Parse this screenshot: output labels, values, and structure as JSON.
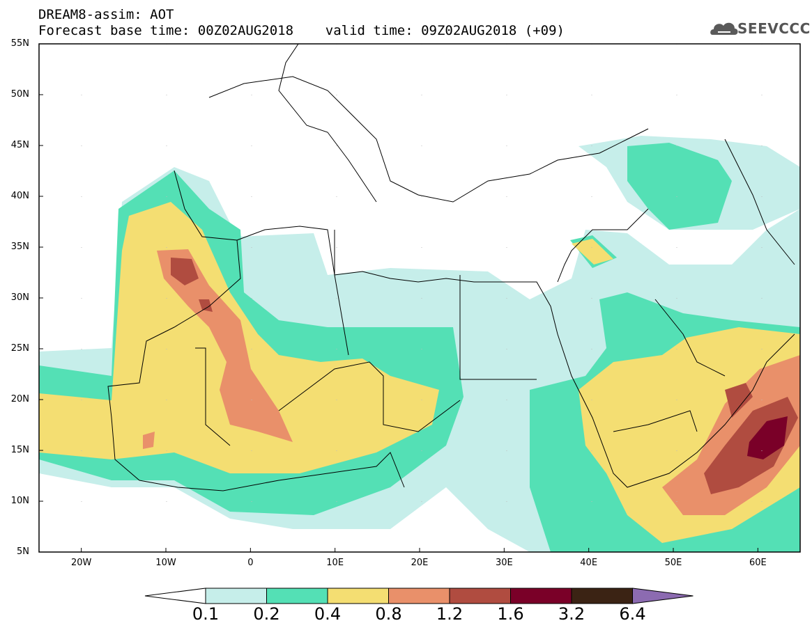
{
  "header": {
    "line1": "DREAM8-assim: AOT",
    "line2": "Forecast base time: 00Z02AUG2018    valid time: 09Z02AUG2018 (+09)"
  },
  "logo": {
    "text": "SEEVCCC",
    "icon": "cloud-icon"
  },
  "map": {
    "lon_range": [
      -25,
      65
    ],
    "lat_range": [
      5,
      55
    ],
    "lat_labels": [
      {
        "lat": 55,
        "text": "55N"
      },
      {
        "lat": 50,
        "text": "50N"
      },
      {
        "lat": 45,
        "text": "45N"
      },
      {
        "lat": 40,
        "text": "40N"
      },
      {
        "lat": 35,
        "text": "35N"
      },
      {
        "lat": 30,
        "text": "30N"
      },
      {
        "lat": 25,
        "text": "25N"
      },
      {
        "lat": 20,
        "text": "20N"
      },
      {
        "lat": 15,
        "text": "15N"
      },
      {
        "lat": 10,
        "text": "10N"
      },
      {
        "lat": 5,
        "text": "5N"
      }
    ],
    "lon_labels": [
      {
        "lon": -20,
        "text": "20W"
      },
      {
        "lon": -10,
        "text": "10W"
      },
      {
        "lon": 0,
        "text": "0"
      },
      {
        "lon": 10,
        "text": "10E"
      },
      {
        "lon": 20,
        "text": "20E"
      },
      {
        "lon": 30,
        "text": "30E"
      },
      {
        "lon": 40,
        "text": "40E"
      },
      {
        "lon": 50,
        "text": "50E"
      },
      {
        "lon": 60,
        "text": "60E"
      }
    ]
  },
  "colorbar": {
    "colors": [
      "#c6eeea",
      "#54e0b5",
      "#f4de72",
      "#e9906a",
      "#b04c40",
      "#7a0028",
      "#3b2314",
      "#8c6bb1"
    ],
    "labels": [
      "0.1",
      "0.2",
      "0.4",
      "0.8",
      "1.2",
      "1.6",
      "3.2",
      "6.4"
    ]
  }
}
